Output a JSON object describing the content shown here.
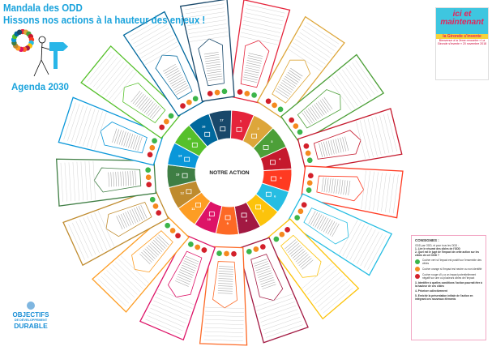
{
  "header": {
    "title_line1": "Mandala des ODD",
    "title_line2": "Hissons nos actions à la hauteur des enjeux !",
    "agenda": "Agenda 2030"
  },
  "center": {
    "label": "NOTRE ACTION"
  },
  "sdgs": [
    {
      "num": "1",
      "color": "#E5243B"
    },
    {
      "num": "2",
      "color": "#DDA63A"
    },
    {
      "num": "3",
      "color": "#4C9F38"
    },
    {
      "num": "4",
      "color": "#C5192D"
    },
    {
      "num": "5",
      "color": "#FF3A21"
    },
    {
      "num": "6",
      "color": "#26BDE2"
    },
    {
      "num": "7",
      "color": "#FCC30B"
    },
    {
      "num": "8",
      "color": "#A21942"
    },
    {
      "num": "9",
      "color": "#FD6925"
    },
    {
      "num": "10",
      "color": "#DD1367"
    },
    {
      "num": "11",
      "color": "#FD9D24"
    },
    {
      "num": "12",
      "color": "#BF8B2E"
    },
    {
      "num": "13",
      "color": "#3F7E44"
    },
    {
      "num": "14",
      "color": "#0A97D9"
    },
    {
      "num": "15",
      "color": "#56C02B"
    },
    {
      "num": "16",
      "color": "#00689D"
    },
    {
      "num": "17",
      "color": "#19486A"
    }
  ],
  "impact_colors": {
    "positive": "#3cb54a",
    "neutral": "#f58a1f",
    "negative": "#d3202a"
  },
  "poster": {
    "line1": "ici et",
    "line2": "maintenant",
    "band": "la Gironde s'invente",
    "sub": "Bienvenue à la 2ème rencontre « La Gironde s'invente » 20 novembre 2018"
  },
  "consignes": {
    "title": "CONSIGNES :",
    "intro": "ODD par ODD, et pour tous les ODD :",
    "step1": "1- Lire le résumé des cibles de l'ODD",
    "step2": "2- Quel est le jugé de l'impact de cette action sur les cibles de cet ODD ?",
    "green": "Cocher vert si l'impact est positif sur l'ensemble des cibles",
    "orange": "Cocher orange si l'impact est neutre ou non identifié",
    "red": "Cocher rouge s'il y a un impact potentiellement négatif sur une ou plusieurs cibles de l'impact",
    "step3": "3- Identifier à quelles conditions l'action pourrait être à la hauteur de ces cibles",
    "step4": "4- Prioriser collectivement",
    "step5": "5- Enrichir la présentation initiale de l'action en intégrant ces nouveaux éléments"
  },
  "logo": {
    "line1": "OBJECTIFS",
    "line2": "DE DÉVELOPPEMENT",
    "line3": "DURABLE"
  }
}
